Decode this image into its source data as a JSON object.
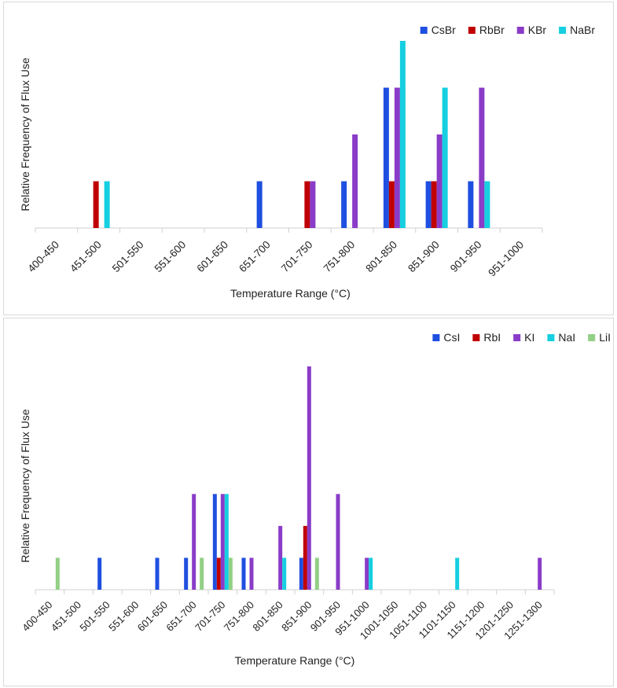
{
  "charts": [
    {
      "type": "bar",
      "title": "",
      "xlabel": "Temperature Range (°C)",
      "ylabel": "Relative Frequency of Flux Use",
      "ylim": [
        0,
        4
      ],
      "legend_position": "top-right",
      "categories": [
        "400-450",
        "451-500",
        "501-550",
        "551-600",
        "601-650",
        "651-700",
        "701-750",
        "751-800",
        "801-850",
        "851-900",
        "901-950",
        "951-1000"
      ],
      "series": [
        {
          "name": "CsBr",
          "color": "#1f4fe0",
          "values": [
            0,
            0,
            0,
            0,
            0,
            1,
            0,
            1,
            3,
            1,
            1,
            0
          ]
        },
        {
          "name": "RbBr",
          "color": "#c00000",
          "values": [
            0,
            1,
            0,
            0,
            0,
            0,
            1,
            0,
            1,
            1,
            0,
            0
          ]
        },
        {
          "name": "KBr",
          "color": "#8a3cc8",
          "values": [
            0,
            0,
            0,
            0,
            0,
            0,
            1,
            2,
            3,
            2,
            3,
            0
          ]
        },
        {
          "name": "NaBr",
          "color": "#16cfe0",
          "values": [
            0,
            1,
            0,
            0,
            0,
            0,
            0,
            0,
            4,
            3,
            1,
            0
          ]
        }
      ]
    },
    {
      "type": "bar",
      "title": "",
      "xlabel": "Temperature Range (°C)",
      "ylabel": "Relative Frequency of Flux Use",
      "ylim": [
        0,
        7
      ],
      "legend_position": "top-right",
      "categories": [
        "400-450",
        "451-500",
        "501-550",
        "551-600",
        "601-650",
        "651-700",
        "701-750",
        "751-800",
        "801-850",
        "851-900",
        "901-950",
        "951-1000",
        "1001-1050",
        "1051-1100",
        "1101-1150",
        "1151-1200",
        "1201-1250",
        "1251-1300"
      ],
      "series": [
        {
          "name": "CsI",
          "color": "#1f4fe0",
          "values": [
            0,
            0,
            1,
            0,
            1,
            1,
            3,
            1,
            0,
            1,
            0,
            0,
            0,
            0,
            0,
            0,
            0,
            0
          ]
        },
        {
          "name": "RbI",
          "color": "#c00000",
          "values": [
            0,
            0,
            0,
            0,
            0,
            0,
            1,
            0,
            0,
            2,
            0,
            0,
            0,
            0,
            0,
            0,
            0,
            0
          ]
        },
        {
          "name": "KI",
          "color": "#8a3cc8",
          "values": [
            0,
            0,
            0,
            0,
            0,
            3,
            3,
            1,
            2,
            7,
            3,
            1,
            0,
            0,
            0,
            0,
            0,
            1
          ]
        },
        {
          "name": "NaI",
          "color": "#16cfe0",
          "values": [
            0,
            0,
            0,
            0,
            0,
            0,
            3,
            0,
            1,
            0,
            0,
            1,
            0,
            0,
            1,
            0,
            0,
            0
          ]
        },
        {
          "name": "LiI",
          "color": "#93cf86",
          "values": [
            1,
            0,
            0,
            0,
            0,
            1,
            1,
            0,
            0,
            1,
            0,
            0,
            0,
            0,
            0,
            0,
            0,
            0
          ]
        }
      ]
    }
  ]
}
